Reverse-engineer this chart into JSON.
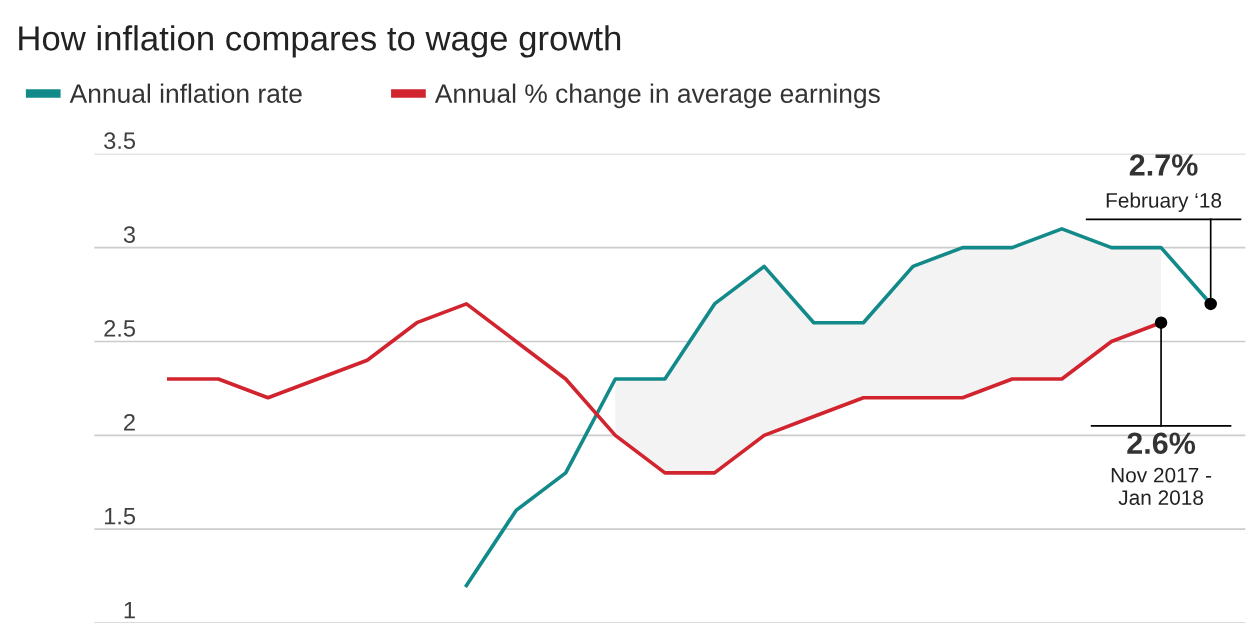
{
  "chart_data": {
    "type": "line",
    "title": "How inflation compares to wage growth",
    "categories": [
      null,
      null,
      null,
      null,
      null,
      null,
      null,
      null,
      null,
      null,
      null,
      null,
      null,
      null,
      null,
      null,
      null,
      null,
      null,
      null,
      null,
      null
    ],
    "series": [
      {
        "name": "Annual inflation rate",
        "color": "#138a8a",
        "values": [
          null,
          null,
          null,
          null,
          null,
          null,
          1.2,
          1.6,
          1.8,
          2.3,
          2.3,
          2.7,
          2.9,
          2.6,
          2.6,
          2.9,
          3.0,
          3.0,
          3.1,
          3.0,
          3.0,
          2.7
        ],
        "lower": [
          null,
          null,
          null,
          null,
          null,
          null,
          null,
          null,
          null,
          2.0,
          1.8,
          1.8,
          2.0,
          2.1,
          2.2,
          2.2,
          2.2,
          2.3,
          2.3,
          2.5,
          2.6,
          null
        ],
        "upper": [
          null,
          null,
          null,
          null,
          null,
          null,
          null,
          null,
          null,
          2.3,
          2.3,
          2.7,
          2.9,
          2.6,
          2.6,
          2.9,
          3.0,
          3.0,
          3.1,
          3.0,
          3.0,
          null
        ]
      },
      {
        "name": "Annual % change in average earnings",
        "color": "#d1242f",
        "values": [
          2.3,
          2.3,
          2.2,
          2.3,
          2.4,
          2.6,
          2.7,
          2.5,
          2.3,
          2.0,
          1.8,
          1.8,
          2.0,
          2.1,
          2.2,
          2.2,
          2.2,
          2.3,
          2.3,
          2.5,
          2.6,
          null
        ]
      }
    ],
    "ylim": [
      1,
      3.5
    ],
    "yticks": [
      1,
      1.5,
      2,
      2.5,
      3,
      3.5
    ],
    "tick_labels": "y",
    "grid": "y",
    "legend": "top left",
    "line_style": "solid",
    "marker": "none",
    "annotations": [
      "2.7%",
      "February ‘18",
      "2.6%",
      "Nov 2017 -\nJan 2018"
    ]
  }
}
